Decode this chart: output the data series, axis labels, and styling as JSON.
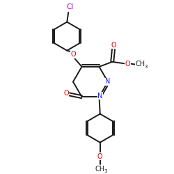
{
  "bg_color": "#ffffff",
  "bond_color": "#1a1a1a",
  "bond_width": 1.4,
  "atom_colors": {
    "C": "#1a1a1a",
    "N": "#2020ff",
    "O": "#dd0000",
    "Cl": "#bb00bb"
  },
  "fs": 7.0,
  "fss": 5.0
}
